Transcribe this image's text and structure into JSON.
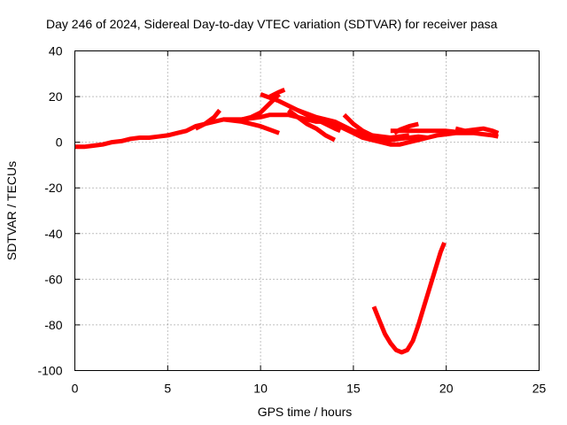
{
  "chart_data": {
    "type": "line",
    "title": "Day 246 of 2024, Sidereal Day-to-day VTEC variation (SDTVAR) for receiver pasa",
    "xlabel": "GPS time / hours",
    "ylabel": "SDTVAR / TECUs",
    "xlim": [
      0,
      25
    ],
    "ylim": [
      -100,
      40
    ],
    "xticks": [
      0,
      5,
      10,
      15,
      20,
      25
    ],
    "yticks": [
      -100,
      -80,
      -60,
      -40,
      -20,
      0,
      20,
      40
    ],
    "grid": true,
    "legend": "none",
    "color": "#ff0000",
    "series": [
      {
        "name": "base",
        "points": [
          [
            0,
            -2
          ],
          [
            0.5,
            -2
          ],
          [
            1,
            -1.5
          ],
          [
            1.5,
            -1
          ],
          [
            2,
            0
          ],
          [
            2.5,
            0.5
          ],
          [
            3,
            1.5
          ],
          [
            3.5,
            2
          ],
          [
            4,
            2
          ],
          [
            4.5,
            2.5
          ],
          [
            5,
            3
          ],
          [
            5.5,
            4
          ],
          [
            6,
            5
          ],
          [
            6.5,
            7
          ],
          [
            7,
            8
          ],
          [
            7.5,
            9
          ],
          [
            8,
            10
          ],
          [
            8.5,
            10
          ],
          [
            9,
            10
          ],
          [
            9.5,
            10.5
          ],
          [
            10,
            11
          ],
          [
            10.5,
            12
          ],
          [
            11,
            12
          ],
          [
            11.5,
            12
          ],
          [
            12,
            11
          ],
          [
            12.5,
            10
          ],
          [
            13,
            9
          ],
          [
            13.5,
            9
          ],
          [
            14,
            8
          ],
          [
            14.5,
            6
          ],
          [
            15,
            4
          ],
          [
            15.5,
            2
          ],
          [
            16,
            1
          ],
          [
            16.5,
            0
          ],
          [
            17,
            -1
          ],
          [
            17.5,
            -1
          ],
          [
            18,
            0
          ],
          [
            18.5,
            1
          ],
          [
            19,
            2
          ],
          [
            19.5,
            3
          ],
          [
            20,
            3.5
          ],
          [
            20.5,
            4
          ],
          [
            21,
            4
          ],
          [
            21.5,
            4
          ],
          [
            22,
            3.5
          ],
          [
            22.5,
            3
          ],
          [
            22.8,
            2.5
          ]
        ]
      },
      {
        "name": "arc-1",
        "points": [
          [
            6.5,
            6
          ],
          [
            7,
            8
          ],
          [
            7.5,
            11
          ],
          [
            7.8,
            14
          ]
        ]
      },
      {
        "name": "arc-2",
        "points": [
          [
            9,
            10
          ],
          [
            9.5,
            11
          ],
          [
            10,
            13
          ],
          [
            10.5,
            17
          ],
          [
            11,
            21
          ]
        ]
      },
      {
        "name": "arc-3",
        "points": [
          [
            8,
            10
          ],
          [
            9,
            9
          ],
          [
            10,
            7
          ],
          [
            11,
            4
          ]
        ]
      },
      {
        "name": "arc-4",
        "points": [
          [
            10,
            21
          ],
          [
            11,
            18
          ],
          [
            12,
            14
          ],
          [
            13,
            11
          ],
          [
            14,
            9
          ],
          [
            15,
            5
          ],
          [
            16,
            3
          ],
          [
            17,
            2
          ],
          [
            18,
            3
          ]
        ]
      },
      {
        "name": "arc-5",
        "points": [
          [
            10.5,
            20
          ],
          [
            11,
            22
          ],
          [
            11.3,
            23
          ]
        ]
      },
      {
        "name": "arc-6",
        "points": [
          [
            11.5,
            14
          ],
          [
            12,
            11
          ],
          [
            12.5,
            8
          ],
          [
            13,
            6
          ],
          [
            13.5,
            3
          ],
          [
            14,
            1
          ]
        ]
      },
      {
        "name": "arc-7",
        "points": [
          [
            12,
            14
          ],
          [
            12.5,
            12
          ],
          [
            13,
            10
          ],
          [
            13.5,
            8
          ],
          [
            14,
            6
          ],
          [
            14.3,
            5
          ]
        ]
      },
      {
        "name": "arc-8",
        "points": [
          [
            14.5,
            12
          ],
          [
            15,
            8
          ],
          [
            15.5,
            5
          ],
          [
            16,
            3
          ],
          [
            16.5,
            1
          ],
          [
            17,
            0
          ]
        ]
      },
      {
        "name": "arc-9",
        "points": [
          [
            17.2,
            4
          ],
          [
            17.5,
            5.5
          ],
          [
            18,
            7
          ],
          [
            18.5,
            8
          ]
        ]
      },
      {
        "name": "arc-10",
        "points": [
          [
            17,
            5
          ],
          [
            18,
            5
          ],
          [
            19,
            5
          ],
          [
            20,
            5
          ],
          [
            20.5,
            4.5
          ]
        ]
      },
      {
        "name": "arc-11",
        "points": [
          [
            20.5,
            6
          ],
          [
            21,
            5
          ],
          [
            21.5,
            5.5
          ],
          [
            22,
            6
          ],
          [
            22.5,
            5
          ],
          [
            22.8,
            4
          ]
        ]
      },
      {
        "name": "arc-12",
        "points": [
          [
            15.5,
            4
          ],
          [
            16,
            2
          ],
          [
            16.5,
            1
          ],
          [
            17,
            1
          ],
          [
            17.5,
            1.5
          ],
          [
            18,
            2
          ],
          [
            18.5,
            2.5
          ],
          [
            19,
            2
          ]
        ]
      },
      {
        "name": "dip",
        "points": [
          [
            16.1,
            -72
          ],
          [
            16.4,
            -78
          ],
          [
            16.7,
            -84
          ],
          [
            17,
            -88
          ],
          [
            17.3,
            -91
          ],
          [
            17.6,
            -92
          ],
          [
            17.9,
            -91
          ],
          [
            18.2,
            -87
          ],
          [
            18.5,
            -80
          ],
          [
            18.8,
            -72
          ],
          [
            19.1,
            -64
          ],
          [
            19.4,
            -56
          ],
          [
            19.7,
            -48
          ],
          [
            19.9,
            -44
          ]
        ]
      }
    ]
  }
}
